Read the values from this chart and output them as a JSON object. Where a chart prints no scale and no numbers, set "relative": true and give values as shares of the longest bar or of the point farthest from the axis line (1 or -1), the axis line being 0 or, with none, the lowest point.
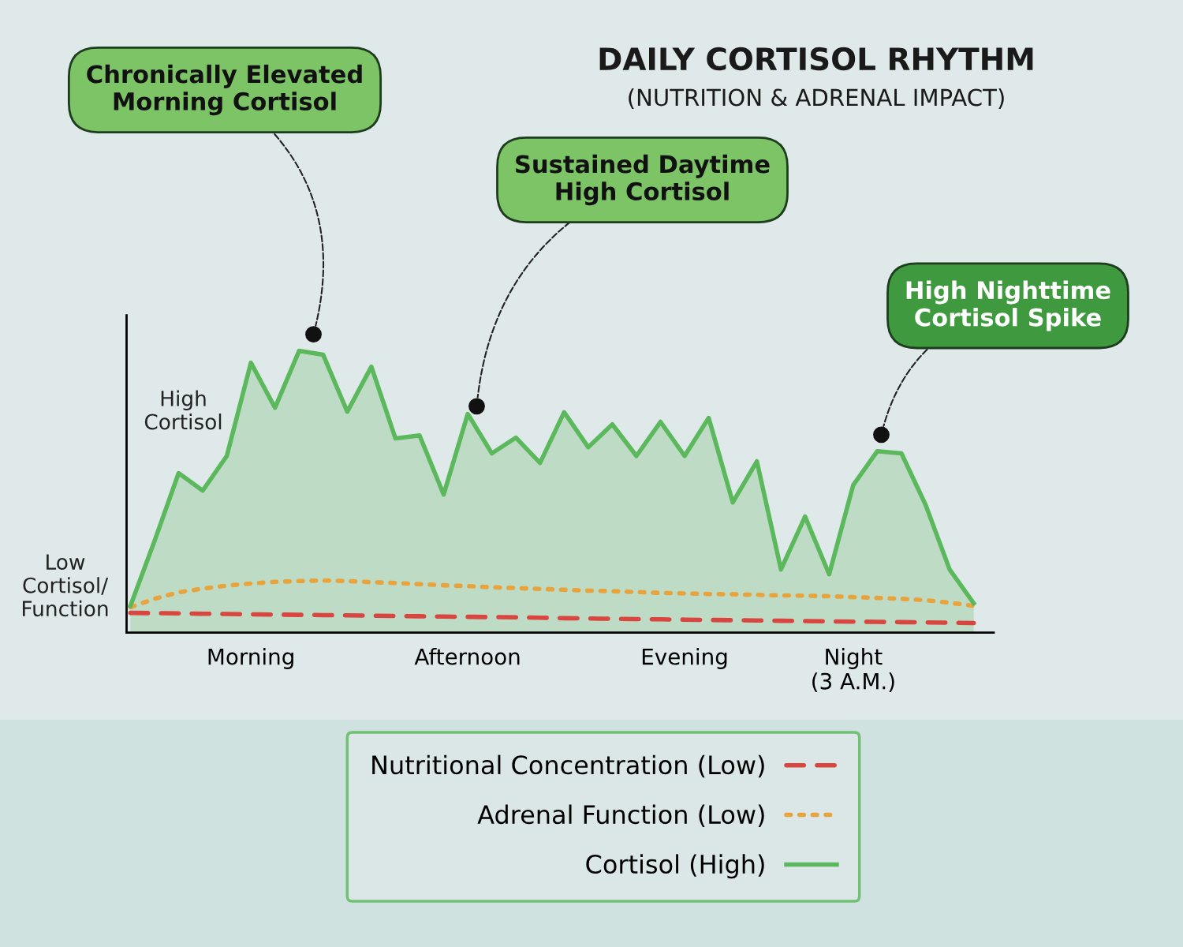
{
  "chart_data": {
    "type": "area",
    "title": "DAILY CORTISOL RHYTHM",
    "subtitle": "(NUTRITION & ADRENAL IMPACT)",
    "relative": true,
    "categories": [
      null,
      null,
      null,
      null,
      null,
      "Morning",
      null,
      null,
      null,
      null,
      null,
      null,
      null,
      null,
      "Afternoon",
      null,
      null,
      null,
      null,
      null,
      null,
      null,
      null,
      "Evening",
      null,
      null,
      null,
      null,
      null,
      null,
      "Night\n(3 A.M.)",
      null,
      null,
      null,
      null,
      null
    ],
    "series": [
      {
        "name": "Nutritional Concentration (Low)",
        "type": "line",
        "line_style": "dashed",
        "color": "#d9463f",
        "values": [
          0.07,
          0.069,
          0.068,
          0.067,
          0.066,
          0.065,
          0.064,
          0.063,
          0.062,
          0.061,
          0.06,
          0.059,
          0.058,
          0.057,
          0.056,
          0.055,
          0.054,
          0.053,
          0.051,
          0.05,
          0.049,
          0.048,
          0.047,
          0.046,
          0.045,
          0.044,
          0.043,
          0.042,
          0.041,
          0.04,
          0.039,
          0.038,
          0.037,
          0.036,
          0.035,
          0.034
        ]
      },
      {
        "name": "Adrenal Function (Low)",
        "type": "line",
        "line_style": "dotted",
        "color": "#e8a33d",
        "values": [
          0.09,
          0.12,
          0.143,
          0.156,
          0.167,
          0.174,
          0.18,
          0.183,
          0.185,
          0.183,
          0.179,
          0.176,
          0.172,
          0.168,
          0.165,
          0.161,
          0.158,
          0.155,
          0.152,
          0.149,
          0.147,
          0.144,
          0.141,
          0.139,
          0.137,
          0.136,
          0.134,
          0.132,
          0.131,
          0.129,
          0.126,
          0.123,
          0.12,
          0.115,
          0.106,
          0.095
        ]
      },
      {
        "name": "Cortisol (High)",
        "line_style": "solid",
        "color": "#5cb85c",
        "values": [
          0.095,
          0.325,
          0.566,
          0.504,
          0.627,
          0.958,
          0.798,
          1.0,
          0.986,
          0.784,
          0.944,
          0.689,
          0.7,
          0.49,
          0.776,
          0.636,
          0.692,
          0.602,
          0.782,
          0.658,
          0.739,
          0.627,
          0.748,
          0.627,
          0.762,
          0.462,
          0.608,
          0.224,
          0.412,
          0.207,
          0.524,
          0.644,
          0.636,
          0.454,
          0.224,
          0.104
        ]
      }
    ],
    "annotations": [
      "Chronically Elevated\nMorning Cortisol",
      "Sustained Daytime\nHigh Cortisol",
      "High Nighttime\nCortisol Spike",
      "High\nCortisol",
      "Low\nCortisol/\nFunction"
    ],
    "legend": "bottom",
    "marker": "none",
    "grid": false
  }
}
